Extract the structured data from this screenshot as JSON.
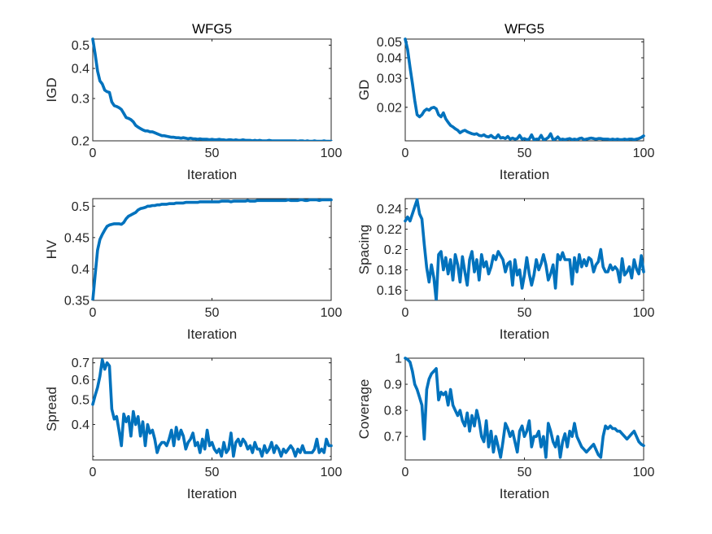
{
  "line_color": "#0072BD",
  "axis_color": "#262626",
  "chart_data": [
    {
      "type": "line",
      "title": "WFG5",
      "xlabel": "Iteration",
      "ylabel": "IGD",
      "xlim": [
        0,
        100
      ],
      "ylim": [
        0.2,
        0.53
      ],
      "yscale": "log",
      "xticks": [
        0,
        50,
        100
      ],
      "yticks": [
        0.2,
        0.3,
        0.4,
        0.5
      ],
      "ytick_labels": [
        "0.2",
        "0.3",
        "0.4",
        "0.5"
      ],
      "grid": false,
      "x": [
        0,
        1,
        2,
        3,
        4,
        5,
        6,
        7,
        8,
        9,
        10,
        11,
        12,
        13,
        14,
        15,
        16,
        17,
        18,
        19,
        20,
        21,
        22,
        23,
        24,
        25,
        26,
        27,
        28,
        29,
        30,
        31,
        32,
        33,
        34,
        35,
        36,
        37,
        38,
        39,
        40,
        41,
        42,
        43,
        44,
        45,
        46,
        47,
        48,
        49,
        50,
        51,
        52,
        53,
        54,
        55,
        56,
        57,
        58,
        59,
        60,
        61,
        62,
        63,
        64,
        65,
        66,
        67,
        68,
        69,
        70,
        71,
        72,
        73,
        74,
        75,
        76,
        77,
        78,
        79,
        80,
        81,
        82,
        83,
        84,
        85,
        86,
        87,
        88,
        89,
        90,
        91,
        92,
        93,
        94,
        95,
        96,
        97,
        98,
        99,
        100
      ],
      "y": [
        0.53,
        0.46,
        0.39,
        0.355,
        0.345,
        0.325,
        0.32,
        0.318,
        0.29,
        0.28,
        0.278,
        0.275,
        0.27,
        0.26,
        0.25,
        0.248,
        0.245,
        0.24,
        0.232,
        0.228,
        0.225,
        0.222,
        0.22,
        0.22,
        0.218,
        0.218,
        0.216,
        0.214,
        0.212,
        0.21,
        0.21,
        0.209,
        0.208,
        0.207,
        0.207,
        0.206,
        0.206,
        0.205,
        0.206,
        0.205,
        0.204,
        0.205,
        0.204,
        0.204,
        0.203,
        0.204,
        0.203,
        0.203,
        0.203,
        0.202,
        0.203,
        0.202,
        0.202,
        0.203,
        0.202,
        0.202,
        0.201,
        0.202,
        0.202,
        0.201,
        0.202,
        0.201,
        0.201,
        0.202,
        0.201,
        0.201,
        0.201,
        0.2,
        0.201,
        0.2,
        0.201,
        0.2,
        0.2,
        0.2,
        0.201,
        0.2,
        0.2,
        0.2,
        0.2,
        0.2,
        0.2,
        0.2,
        0.2,
        0.2,
        0.2,
        0.2,
        0.199,
        0.2,
        0.2,
        0.199,
        0.2,
        0.199,
        0.199,
        0.2,
        0.199,
        0.199,
        0.199,
        0.2,
        0.199,
        0.199,
        0.199
      ]
    },
    {
      "type": "line",
      "title": "WFG5",
      "xlabel": "Iteration",
      "ylabel": "GD",
      "xlim": [
        0,
        100
      ],
      "ylim": [
        0.0125,
        0.052
      ],
      "yscale": "log",
      "xticks": [
        0,
        50,
        100
      ],
      "yticks": [
        0.02,
        0.03,
        0.04,
        0.05
      ],
      "ytick_labels": [
        "0.02",
        "0.03",
        "0.04",
        "0.05"
      ],
      "grid": false,
      "x": [
        0,
        1,
        2,
        3,
        4,
        5,
        6,
        7,
        8,
        9,
        10,
        11,
        12,
        13,
        14,
        15,
        16,
        17,
        18,
        19,
        20,
        21,
        22,
        23,
        24,
        25,
        26,
        27,
        28,
        29,
        30,
        31,
        32,
        33,
        34,
        35,
        36,
        37,
        38,
        39,
        40,
        41,
        42,
        43,
        44,
        45,
        46,
        47,
        48,
        49,
        50,
        51,
        52,
        53,
        54,
        55,
        56,
        57,
        58,
        59,
        60,
        61,
        62,
        63,
        64,
        65,
        66,
        67,
        68,
        69,
        70,
        71,
        72,
        73,
        74,
        75,
        76,
        77,
        78,
        79,
        80,
        81,
        82,
        83,
        84,
        85,
        86,
        87,
        88,
        89,
        90,
        91,
        92,
        93,
        94,
        95,
        96,
        97,
        98,
        99,
        100
      ],
      "y": [
        0.052,
        0.045,
        0.035,
        0.028,
        0.022,
        0.018,
        0.0175,
        0.018,
        0.019,
        0.0195,
        0.0192,
        0.0198,
        0.02,
        0.0196,
        0.018,
        0.0175,
        0.0185,
        0.017,
        0.0162,
        0.0155,
        0.0152,
        0.0148,
        0.0145,
        0.014,
        0.0143,
        0.0145,
        0.0142,
        0.014,
        0.0138,
        0.0137,
        0.0138,
        0.0135,
        0.0134,
        0.0136,
        0.0133,
        0.0132,
        0.0135,
        0.0131,
        0.013,
        0.0136,
        0.013,
        0.0131,
        0.0129,
        0.0133,
        0.0128,
        0.013,
        0.0128,
        0.0129,
        0.0135,
        0.0128,
        0.0129,
        0.0127,
        0.0128,
        0.0136,
        0.0127,
        0.0128,
        0.0128,
        0.0135,
        0.0127,
        0.0128,
        0.0131,
        0.0138,
        0.0127,
        0.0128,
        0.0132,
        0.0127,
        0.0128,
        0.0127,
        0.0128,
        0.0129,
        0.0127,
        0.0128,
        0.0127,
        0.0129,
        0.013,
        0.0127,
        0.0128,
        0.0129,
        0.013,
        0.0129,
        0.0128,
        0.0129,
        0.0129,
        0.0128,
        0.0128,
        0.0128,
        0.0127,
        0.0128,
        0.0127,
        0.0128,
        0.0127,
        0.0127,
        0.0128,
        0.0127,
        0.0128,
        0.0128,
        0.0127,
        0.0128,
        0.0129,
        0.0131,
        0.0134
      ]
    },
    {
      "type": "line",
      "title": "",
      "xlabel": "Iteration",
      "ylabel": "HV",
      "xlim": [
        0,
        100
      ],
      "ylim": [
        0.35,
        0.512
      ],
      "xticks": [
        0,
        50,
        100
      ],
      "yticks": [
        0.35,
        0.4,
        0.45,
        0.5
      ],
      "ytick_labels": [
        "0.35",
        "0.4",
        "0.45",
        "0.5"
      ],
      "grid": false,
      "x": [
        0,
        1,
        2,
        3,
        4,
        5,
        6,
        7,
        8,
        9,
        10,
        11,
        12,
        13,
        14,
        15,
        16,
        17,
        18,
        19,
        20,
        21,
        22,
        23,
        24,
        25,
        26,
        27,
        28,
        29,
        30,
        31,
        32,
        33,
        34,
        35,
        36,
        37,
        38,
        39,
        40,
        41,
        42,
        43,
        44,
        45,
        46,
        47,
        48,
        49,
        50,
        51,
        52,
        53,
        54,
        55,
        56,
        57,
        58,
        59,
        60,
        61,
        62,
        63,
        64,
        65,
        66,
        67,
        68,
        69,
        70,
        71,
        72,
        73,
        74,
        75,
        76,
        77,
        78,
        79,
        80,
        81,
        82,
        83,
        84,
        85,
        86,
        87,
        88,
        89,
        90,
        91,
        92,
        93,
        94,
        95,
        96,
        97,
        98,
        99,
        100
      ],
      "y": [
        0.35,
        0.39,
        0.43,
        0.447,
        0.455,
        0.462,
        0.468,
        0.47,
        0.471,
        0.472,
        0.472,
        0.472,
        0.471,
        0.474,
        0.48,
        0.484,
        0.486,
        0.488,
        0.49,
        0.494,
        0.496,
        0.497,
        0.498,
        0.5,
        0.5,
        0.501,
        0.501,
        0.502,
        0.502,
        0.503,
        0.503,
        0.503,
        0.504,
        0.504,
        0.504,
        0.505,
        0.505,
        0.505,
        0.505,
        0.506,
        0.506,
        0.506,
        0.506,
        0.506,
        0.506,
        0.507,
        0.507,
        0.507,
        0.507,
        0.507,
        0.507,
        0.507,
        0.507,
        0.507,
        0.508,
        0.508,
        0.508,
        0.508,
        0.507,
        0.508,
        0.508,
        0.508,
        0.508,
        0.508,
        0.508,
        0.509,
        0.508,
        0.508,
        0.508,
        0.509,
        0.509,
        0.509,
        0.509,
        0.509,
        0.509,
        0.509,
        0.509,
        0.509,
        0.509,
        0.509,
        0.509,
        0.509,
        0.51,
        0.509,
        0.509,
        0.509,
        0.509,
        0.51,
        0.51,
        0.509,
        0.509,
        0.51,
        0.51,
        0.51,
        0.51,
        0.509,
        0.51,
        0.51,
        0.51,
        0.51,
        0.51
      ]
    },
    {
      "type": "line",
      "title": "",
      "xlabel": "Iteration",
      "ylabel": "Spacing",
      "xlim": [
        0,
        100
      ],
      "ylim": [
        0.15,
        0.25
      ],
      "xticks": [
        0,
        50,
        100
      ],
      "yticks": [
        0.16,
        0.18,
        0.2,
        0.22,
        0.24
      ],
      "ytick_labels": [
        "0.16",
        "0.18",
        "0.2",
        "0.22",
        "0.24"
      ],
      "grid": false,
      "x": [
        0,
        1,
        2,
        3,
        4,
        5,
        6,
        7,
        8,
        9,
        10,
        11,
        12,
        13,
        14,
        15,
        16,
        17,
        18,
        19,
        20,
        21,
        22,
        23,
        24,
        25,
        26,
        27,
        28,
        29,
        30,
        31,
        32,
        33,
        34,
        35,
        36,
        37,
        38,
        39,
        40,
        41,
        42,
        43,
        44,
        45,
        46,
        47,
        48,
        49,
        50,
        51,
        52,
        53,
        54,
        55,
        56,
        57,
        58,
        59,
        60,
        61,
        62,
        63,
        64,
        65,
        66,
        67,
        68,
        69,
        70,
        71,
        72,
        73,
        74,
        75,
        76,
        77,
        78,
        79,
        80,
        81,
        82,
        83,
        84,
        85,
        86,
        87,
        88,
        89,
        90,
        91,
        92,
        93,
        94,
        95,
        96,
        97,
        98,
        99,
        100
      ],
      "y": [
        0.228,
        0.232,
        0.228,
        0.235,
        0.242,
        0.249,
        0.235,
        0.23,
        0.205,
        0.182,
        0.168,
        0.185,
        0.172,
        0.15,
        0.195,
        0.198,
        0.18,
        0.192,
        0.176,
        0.19,
        0.17,
        0.195,
        0.185,
        0.168,
        0.193,
        0.178,
        0.165,
        0.19,
        0.198,
        0.178,
        0.19,
        0.17,
        0.195,
        0.183,
        0.188,
        0.176,
        0.183,
        0.194,
        0.19,
        0.198,
        0.194,
        0.19,
        0.178,
        0.186,
        0.188,
        0.165,
        0.19,
        0.175,
        0.18,
        0.162,
        0.175,
        0.192,
        0.176,
        0.165,
        0.175,
        0.19,
        0.18,
        0.186,
        0.195,
        0.185,
        0.17,
        0.176,
        0.185,
        0.162,
        0.195,
        0.19,
        0.197,
        0.19,
        0.19,
        0.19,
        0.166,
        0.192,
        0.178,
        0.195,
        0.183,
        0.19,
        0.184,
        0.192,
        0.19,
        0.178,
        0.185,
        0.188,
        0.2,
        0.183,
        0.178,
        0.178,
        0.185,
        0.18,
        0.183,
        0.18,
        0.168,
        0.191,
        0.175,
        0.178,
        0.183,
        0.172,
        0.19,
        0.181,
        0.176,
        0.194,
        0.178
      ]
    },
    {
      "type": "line",
      "title": "",
      "xlabel": "Iteration",
      "ylabel": "Spread",
      "xlim": [
        0,
        100
      ],
      "ylim": [
        0.29,
        0.73
      ],
      "yscale": "log",
      "xticks": [
        0,
        50,
        100
      ],
      "yticks": [
        0.4,
        0.5,
        0.6,
        0.7
      ],
      "ytick_labels": [
        "0.4",
        "0.5",
        "0.6",
        "0.7"
      ],
      "grid": false,
      "x": [
        0,
        1,
        2,
        3,
        4,
        5,
        6,
        7,
        8,
        9,
        10,
        11,
        12,
        13,
        14,
        15,
        16,
        17,
        18,
        19,
        20,
        21,
        22,
        23,
        24,
        25,
        26,
        27,
        28,
        29,
        30,
        31,
        32,
        33,
        34,
        35,
        36,
        37,
        38,
        39,
        40,
        41,
        42,
        43,
        44,
        45,
        46,
        47,
        48,
        49,
        50,
        51,
        52,
        53,
        54,
        55,
        56,
        57,
        58,
        59,
        60,
        61,
        62,
        63,
        64,
        65,
        66,
        67,
        68,
        69,
        70,
        71,
        72,
        73,
        74,
        75,
        76,
        77,
        78,
        79,
        80,
        81,
        82,
        83,
        84,
        85,
        86,
        87,
        88,
        89,
        90,
        91,
        92,
        93,
        94,
        95,
        96,
        97,
        98,
        99,
        100
      ],
      "y": [
        0.48,
        0.52,
        0.56,
        0.62,
        0.72,
        0.66,
        0.7,
        0.68,
        0.46,
        0.42,
        0.43,
        0.38,
        0.33,
        0.44,
        0.41,
        0.43,
        0.36,
        0.45,
        0.4,
        0.43,
        0.36,
        0.41,
        0.33,
        0.4,
        0.37,
        0.38,
        0.35,
        0.31,
        0.33,
        0.34,
        0.34,
        0.33,
        0.35,
        0.38,
        0.33,
        0.39,
        0.35,
        0.38,
        0.36,
        0.32,
        0.34,
        0.35,
        0.37,
        0.33,
        0.34,
        0.31,
        0.35,
        0.32,
        0.38,
        0.33,
        0.34,
        0.32,
        0.31,
        0.32,
        0.3,
        0.34,
        0.31,
        0.32,
        0.37,
        0.3,
        0.34,
        0.35,
        0.33,
        0.35,
        0.34,
        0.32,
        0.33,
        0.31,
        0.34,
        0.32,
        0.32,
        0.3,
        0.33,
        0.31,
        0.32,
        0.34,
        0.31,
        0.33,
        0.32,
        0.3,
        0.32,
        0.31,
        0.32,
        0.33,
        0.32,
        0.3,
        0.32,
        0.31,
        0.33,
        0.31,
        0.31,
        0.31,
        0.31,
        0.32,
        0.35,
        0.31,
        0.32,
        0.31,
        0.35,
        0.33,
        0.33
      ]
    },
    {
      "type": "line",
      "title": "",
      "xlabel": "Iteration",
      "ylabel": "Coverage",
      "xlim": [
        0,
        100
      ],
      "ylim": [
        0.61,
        1.0
      ],
      "xticks": [
        0,
        50,
        100
      ],
      "yticks": [
        0.7,
        0.8,
        0.9,
        1.0
      ],
      "ytick_labels": [
        "0.7",
        "0.8",
        "0.9",
        "1"
      ],
      "grid": false,
      "x": [
        0,
        1,
        2,
        3,
        4,
        5,
        6,
        7,
        8,
        9,
        10,
        11,
        12,
        13,
        14,
        15,
        16,
        17,
        18,
        19,
        20,
        21,
        22,
        23,
        24,
        25,
        26,
        27,
        28,
        29,
        30,
        31,
        32,
        33,
        34,
        35,
        36,
        37,
        38,
        39,
        40,
        41,
        42,
        43,
        44,
        45,
        46,
        47,
        48,
        49,
        50,
        51,
        52,
        53,
        54,
        55,
        56,
        57,
        58,
        59,
        60,
        61,
        62,
        63,
        64,
        65,
        66,
        67,
        68,
        69,
        70,
        71,
        72,
        73,
        74,
        75,
        76,
        77,
        78,
        79,
        80,
        81,
        82,
        83,
        84,
        85,
        86,
        87,
        88,
        89,
        90,
        91,
        92,
        93,
        94,
        95,
        96,
        97,
        98,
        99,
        100
      ],
      "y": [
        1.0,
        0.995,
        0.985,
        0.95,
        0.9,
        0.88,
        0.85,
        0.82,
        0.69,
        0.88,
        0.92,
        0.94,
        0.95,
        0.96,
        0.84,
        0.87,
        0.86,
        0.87,
        0.82,
        0.88,
        0.82,
        0.8,
        0.78,
        0.8,
        0.76,
        0.74,
        0.79,
        0.72,
        0.78,
        0.74,
        0.8,
        0.76,
        0.7,
        0.68,
        0.76,
        0.66,
        0.72,
        0.64,
        0.7,
        0.66,
        0.62,
        0.68,
        0.75,
        0.73,
        0.7,
        0.72,
        0.68,
        0.64,
        0.72,
        0.74,
        0.7,
        0.72,
        0.76,
        0.66,
        0.7,
        0.7,
        0.72,
        0.66,
        0.7,
        0.62,
        0.75,
        0.72,
        0.68,
        0.66,
        0.7,
        0.62,
        0.68,
        0.71,
        0.66,
        0.72,
        0.7,
        0.75,
        0.7,
        0.68,
        0.66,
        0.65,
        0.64,
        0.65,
        0.66,
        0.67,
        0.65,
        0.63,
        0.62,
        0.7,
        0.74,
        0.73,
        0.74,
        0.73,
        0.73,
        0.72,
        0.72,
        0.71,
        0.7,
        0.69,
        0.7,
        0.71,
        0.72,
        0.7,
        0.68,
        0.67,
        0.665
      ]
    }
  ]
}
